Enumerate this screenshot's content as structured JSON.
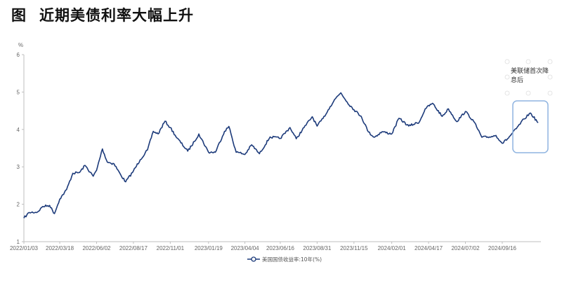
{
  "header": {
    "figure_label": "图",
    "title": "近期美债利率大幅上升"
  },
  "chart_data": {
    "type": "line",
    "y_unit": "%",
    "ylim": [
      1,
      6
    ],
    "yticks": [
      1,
      2,
      3,
      4,
      5,
      6
    ],
    "xlim": [
      "2022-01-03",
      "2024-11-29"
    ],
    "xtick_labels": [
      "2022/01/03",
      "2022/03/18",
      "2022/06/02",
      "2022/08/17",
      "2022/11/01",
      "2023/01/19",
      "2023/04/04",
      "2023/06/16",
      "2023/08/31",
      "2023/11/15",
      "2024/02/01",
      "2024/04/17",
      "2024/07/02",
      "2024/09/16"
    ],
    "grid": false,
    "legend_position": "bottom-center",
    "colors": {
      "line": "#1c3a7a",
      "highlight_box": "#8fb4e0"
    },
    "series": [
      {
        "name": "美国国债收益率:10年(%)",
        "points": [
          [
            "2022-01-03",
            1.63
          ],
          [
            "2022-01-14",
            1.78
          ],
          [
            "2022-01-31",
            1.79
          ],
          [
            "2022-02-11",
            1.94
          ],
          [
            "2022-02-25",
            1.97
          ],
          [
            "2022-03-07",
            1.75
          ],
          [
            "2022-03-18",
            2.14
          ],
          [
            "2022-04-01",
            2.39
          ],
          [
            "2022-04-14",
            2.83
          ],
          [
            "2022-04-28",
            2.85
          ],
          [
            "2022-05-09",
            3.04
          ],
          [
            "2022-05-26",
            2.75
          ],
          [
            "2022-06-02",
            2.91
          ],
          [
            "2022-06-14",
            3.48
          ],
          [
            "2022-06-24",
            3.13
          ],
          [
            "2022-07-08",
            3.08
          ],
          [
            "2022-07-22",
            2.78
          ],
          [
            "2022-08-01",
            2.6
          ],
          [
            "2022-08-17",
            2.89
          ],
          [
            "2022-08-31",
            3.19
          ],
          [
            "2022-09-15",
            3.45
          ],
          [
            "2022-09-27",
            3.95
          ],
          [
            "2022-10-07",
            3.88
          ],
          [
            "2022-10-21",
            4.22
          ],
          [
            "2022-11-01",
            4.05
          ],
          [
            "2022-11-15",
            3.77
          ],
          [
            "2022-12-07",
            3.42
          ],
          [
            "2022-12-21",
            3.68
          ],
          [
            "2022-12-30",
            3.88
          ],
          [
            "2023-01-19",
            3.39
          ],
          [
            "2023-02-02",
            3.39
          ],
          [
            "2023-02-21",
            3.95
          ],
          [
            "2023-03-02",
            4.08
          ],
          [
            "2023-03-17",
            3.39
          ],
          [
            "2023-03-24",
            3.38
          ],
          [
            "2023-04-04",
            3.33
          ],
          [
            "2023-04-18",
            3.59
          ],
          [
            "2023-05-04",
            3.35
          ],
          [
            "2023-05-26",
            3.8
          ],
          [
            "2023-06-16",
            3.76
          ],
          [
            "2023-07-06",
            4.05
          ],
          [
            "2023-07-19",
            3.75
          ],
          [
            "2023-08-04",
            4.05
          ],
          [
            "2023-08-21",
            4.34
          ],
          [
            "2023-08-31",
            4.09
          ],
          [
            "2023-09-12",
            4.29
          ],
          [
            "2023-09-27",
            4.61
          ],
          [
            "2023-10-06",
            4.8
          ],
          [
            "2023-10-19",
            4.98
          ],
          [
            "2023-11-01",
            4.73
          ],
          [
            "2023-11-15",
            4.53
          ],
          [
            "2023-11-30",
            4.35
          ],
          [
            "2023-12-15",
            3.93
          ],
          [
            "2023-12-27",
            3.79
          ],
          [
            "2024-01-12",
            3.94
          ],
          [
            "2024-02-01",
            3.88
          ],
          [
            "2024-02-16",
            4.3
          ],
          [
            "2024-03-07",
            4.09
          ],
          [
            "2024-03-29",
            4.2
          ],
          [
            "2024-04-10",
            4.55
          ],
          [
            "2024-04-25",
            4.7
          ],
          [
            "2024-05-15",
            4.35
          ],
          [
            "2024-05-28",
            4.55
          ],
          [
            "2024-06-14",
            4.21
          ],
          [
            "2024-07-02",
            4.48
          ],
          [
            "2024-07-19",
            4.22
          ],
          [
            "2024-08-05",
            3.79
          ],
          [
            "2024-08-21",
            3.8
          ],
          [
            "2024-09-03",
            3.84
          ],
          [
            "2024-09-16",
            3.63
          ],
          [
            "2024-09-27",
            3.75
          ],
          [
            "2024-10-15",
            4.02
          ],
          [
            "2024-10-31",
            4.28
          ],
          [
            "2024-11-13",
            4.44
          ],
          [
            "2024-11-29",
            4.18
          ]
        ]
      }
    ],
    "annotation": {
      "text_line1": "美联储首次降",
      "text_line2": "息后"
    }
  }
}
